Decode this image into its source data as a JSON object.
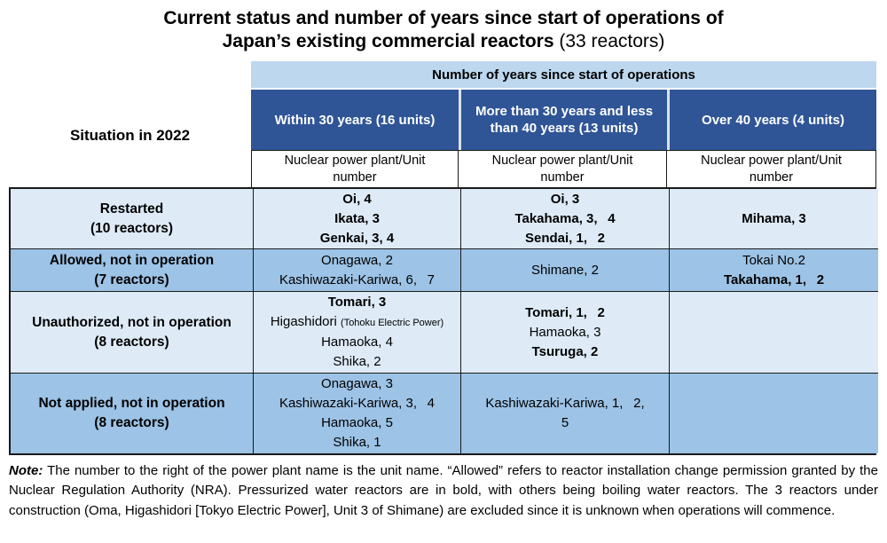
{
  "title": {
    "line1": "Current status and number of years since start of operations of",
    "line2_bold": "Japan’s existing commercial reactors",
    "line2_rest": " (33 reactors)"
  },
  "table": {
    "band": "Number of years since start of operations",
    "situation": "Situation in 2022",
    "col_headers": [
      "Within 30 years (16 units)",
      "More than 30 years and less than 40 years (13 units)",
      "Over 40 years (4 units)"
    ],
    "sub_header": "Nuclear power plant/Unit number",
    "rows": [
      {
        "label": "Restarted",
        "count": "(10 reactors)",
        "shade": "light",
        "cells": [
          [
            {
              "text": "Oi, 4",
              "bold": true
            },
            {
              "text": "Ikata, 3",
              "bold": true
            },
            {
              "text": "Genkai, 3, 4",
              "bold": true
            }
          ],
          [
            {
              "text": "Oi, 3",
              "bold": true
            },
            {
              "text": "Takahama, 3,  4",
              "bold": true
            },
            {
              "text": "Sendai, 1,  2",
              "bold": true
            }
          ],
          [
            {
              "text": "Mihama, 3",
              "bold": true
            }
          ]
        ]
      },
      {
        "label": "Allowed, not in operation",
        "count": "(7 reactors)",
        "shade": "medium",
        "cells": [
          [
            {
              "text": "Onagawa, 2",
              "bold": false
            },
            {
              "text": "Kashiwazaki-Kariwa, 6,  7",
              "bold": false
            }
          ],
          [
            {
              "text": "Shimane, 2",
              "bold": false
            }
          ],
          [
            {
              "text": "Tokai No.2",
              "bold": false
            },
            {
              "text": "Takahama, 1,  2",
              "bold": true
            }
          ]
        ]
      },
      {
        "label": "Unauthorized, not in operation",
        "count": "(8 reactors)",
        "shade": "light",
        "cells": [
          [
            {
              "text": "Tomari, 3",
              "bold": true
            },
            {
              "text": "Higashidori ",
              "bold": false,
              "small": "(Tohoku Electric Power)"
            },
            {
              "text": "Hamaoka, 4",
              "bold": false
            },
            {
              "text": "Shika, 2",
              "bold": false
            }
          ],
          [
            {
              "text": "Tomari, 1,  2",
              "bold": true
            },
            {
              "text": "Hamaoka, 3",
              "bold": false
            },
            {
              "text": "Tsuruga, 2",
              "bold": true
            }
          ],
          []
        ]
      },
      {
        "label": "Not applied, not in operation",
        "count": "(8 reactors)",
        "shade": "medium",
        "cells": [
          [
            {
              "text": "Onagawa, 3",
              "bold": false
            },
            {
              "text": "Kashiwazaki-Kariwa, 3,  4",
              "bold": false
            },
            {
              "text": "Hamaoka, 5",
              "bold": false
            },
            {
              "text": "Shika, 1",
              "bold": false
            }
          ],
          [
            {
              "text": "Kashiwazaki-Kariwa, 1,  2,",
              "bold": false
            },
            {
              "text": "5",
              "bold": false
            }
          ],
          []
        ]
      }
    ]
  },
  "note": {
    "label": "Note:",
    "text": "The number to the right of the power plant name is the unit name. “Allowed” refers to reactor installation change permission granted by the Nuclear Regulation Authority (NRA). Pressurized water reactors are in bold, with others being boiling water reactors. The 3 reactors under construction (Oma, Higashidori [Tokyo Electric Power], Unit 3 of Shimane) are excluded since it is unknown when operations will commence."
  },
  "colors": {
    "band_bg": "#BDD7EE",
    "header_bg": "#2F5597",
    "row_light_bg": "#DEEBF7",
    "row_medium_bg": "#9DC3E6",
    "border": "#1a1a1a"
  }
}
